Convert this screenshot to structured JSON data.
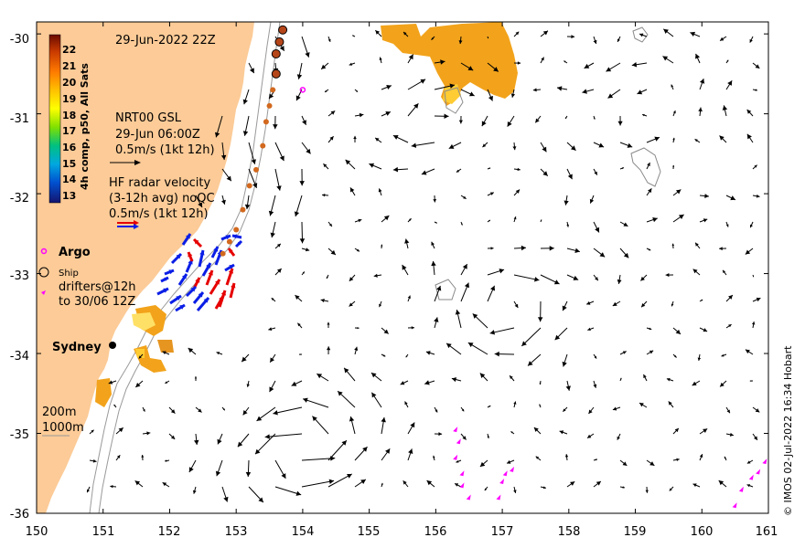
{
  "title": "29-Jun-2022 22Z",
  "colorbar": {
    "label": "4h comp, p50, All Sats",
    "ticks": [
      "22",
      "21",
      "20",
      "19",
      "18",
      "17",
      "16",
      "15",
      "14",
      "13"
    ],
    "colors": [
      "#7a0f00",
      "#c83a00",
      "#ff7a00",
      "#ffb800",
      "#ffff00",
      "#9ae600",
      "#00c060",
      "#00a8d8",
      "#0060e0",
      "#1a1a8c"
    ]
  },
  "legend": {
    "nrt_lines": [
      "NRT00 GSL",
      "29-Jun 06:00Z",
      "0.5m/s (1kt 12h)"
    ],
    "hf_lines": [
      "HF radar velocity",
      "(3-12h avg) noQC",
      "0.5m/s (1kt 12h)"
    ],
    "argo": "Argo",
    "ship": "Ship",
    "drifter_lines": [
      "drifters@12h",
      "to 30/06 12Z"
    ]
  },
  "places": {
    "sydney": "Sydney"
  },
  "isobaths": {
    "depth_200": "200m",
    "depth_1000": "1000m"
  },
  "axes": {
    "x_ticks": [
      "150",
      "151",
      "152",
      "153",
      "154",
      "155",
      "156",
      "157",
      "158",
      "159",
      "160",
      "161"
    ],
    "y_ticks": [
      "-30",
      "-31",
      "-32",
      "-33",
      "-34",
      "-35",
      "-36"
    ],
    "xlim": [
      150,
      161
    ],
    "ylim": [
      -36,
      -29.85
    ]
  },
  "credit": "© IMOS 02-Jul-2022 16:34 Hobart",
  "colors": {
    "land": "#fccb97",
    "sst_warm": "#f2a31b",
    "sst_hot": "#ffcc33",
    "argo": "#ff00ff",
    "hf_blue": "#0a1ee6",
    "hf_red": "#e60000"
  },
  "chart_data": {
    "type": "vector-field map",
    "argo_floats": [
      [
        154.0,
        -30.7
      ]
    ],
    "drifters": [
      {
        "points": [
          [
            156.3,
            -34.95
          ],
          [
            156.35,
            -35.1
          ],
          [
            156.3,
            -35.3
          ],
          [
            156.4,
            -35.5
          ],
          [
            156.4,
            -35.65
          ],
          [
            156.5,
            -35.8
          ]
        ]
      },
      {
        "points": [
          [
            157.15,
            -35.45
          ],
          [
            157.05,
            -35.5
          ],
          [
            157.0,
            -35.6
          ],
          [
            156.95,
            -35.8
          ]
        ]
      },
      {
        "points": [
          [
            160.95,
            -35.35
          ],
          [
            160.85,
            -35.48
          ],
          [
            160.75,
            -35.55
          ],
          [
            160.6,
            -35.7
          ],
          [
            160.5,
            -35.9
          ]
        ]
      }
    ],
    "ship_track": [
      [
        153.7,
        -29.95
      ],
      [
        153.65,
        -30.1
      ],
      [
        153.6,
        -30.25
      ],
      [
        153.6,
        -30.5
      ],
      [
        153.55,
        -30.7
      ],
      [
        153.5,
        -30.9
      ],
      [
        153.45,
        -31.1
      ],
      [
        153.4,
        -31.4
      ],
      [
        153.3,
        -31.7
      ],
      [
        153.2,
        -31.9
      ],
      [
        153.1,
        -32.2
      ],
      [
        153.0,
        -32.45
      ],
      [
        152.9,
        -32.6
      ],
      [
        152.8,
        -32.75
      ]
    ]
  }
}
